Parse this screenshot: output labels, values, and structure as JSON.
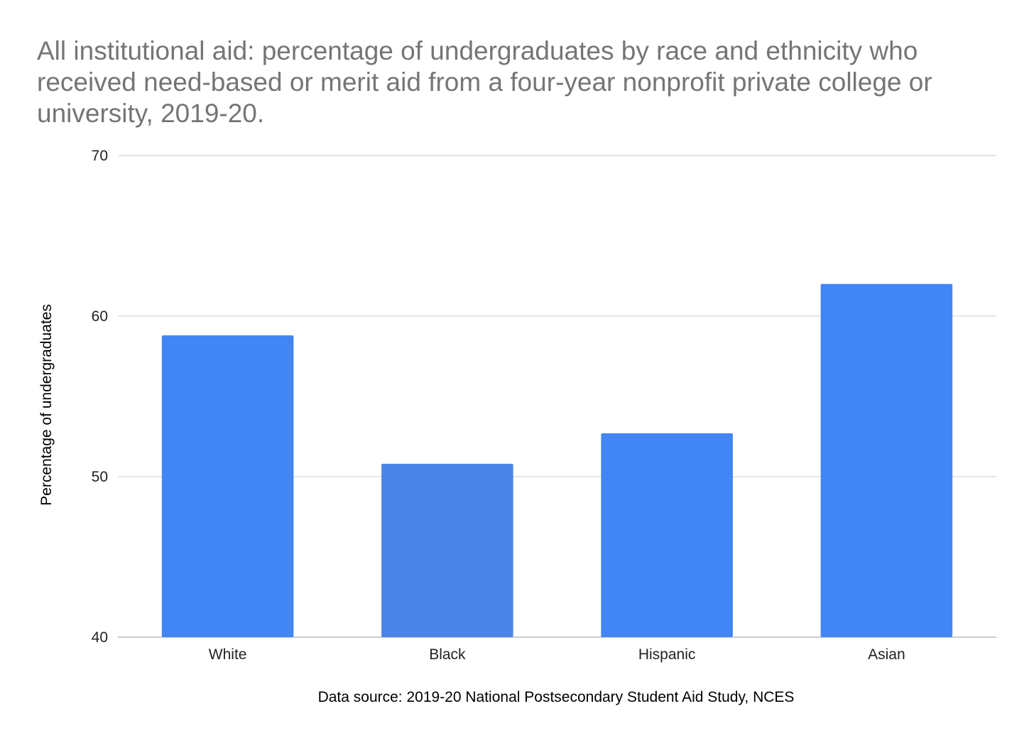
{
  "chart_data": {
    "type": "bar",
    "title": "All institutional aid: percentage of undergraduates by race and ethnicity who received need-based or merit aid from a four-year nonprofit private college or university, 2019-20.",
    "xlabel": "Data source: 2019-20 National Postsecondary Student Aid Study, NCES",
    "ylabel": "Percentage of undergraduates",
    "categories": [
      "White",
      "Black",
      "Hispanic",
      "Asian"
    ],
    "values": [
      58.8,
      50.8,
      52.7,
      62.0
    ],
    "ylim": [
      40,
      70
    ],
    "yticks": [
      "40",
      "50",
      "60",
      "70"
    ],
    "grid": true,
    "legend": "none",
    "colors": {
      "bar": "#4285f4",
      "bar_alt": "#4a86e8",
      "gridline": "#cccccc",
      "title": "#757575"
    }
  }
}
